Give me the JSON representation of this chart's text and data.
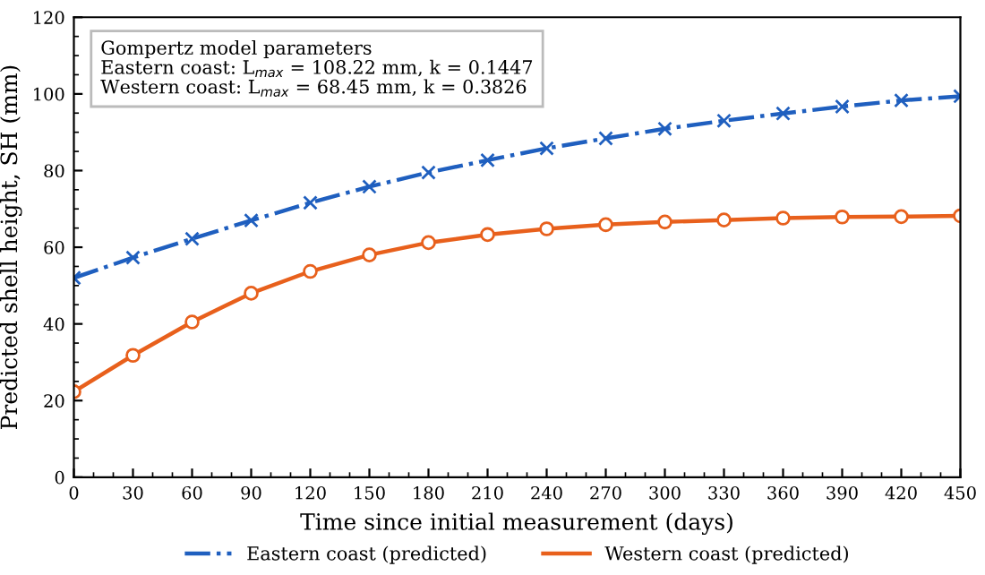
{
  "chart_data": {
    "type": "line",
    "xlabel": "Time since initial measurement (days)",
    "ylabel": "Predicted shell height, SH (mm)",
    "x": [
      0,
      30,
      60,
      90,
      120,
      150,
      180,
      210,
      240,
      270,
      300,
      330,
      360,
      390,
      420,
      450
    ],
    "series": [
      {
        "name": "Eastern coast (predicted)",
        "color": "#1f5fbf",
        "marker": "cross",
        "line_style": "dashdot",
        "values": [
          52,
          57.3,
          62.2,
          67,
          71.6,
          75.8,
          79.5,
          82.7,
          85.8,
          88.4,
          90.9,
          93.0,
          94.9,
          96.7,
          98.3,
          99.4
        ]
      },
      {
        "name": "Western coast (predicted)",
        "color": "#e8601c",
        "marker": "circle",
        "line_style": "solid",
        "values": [
          22.3,
          31.8,
          40.5,
          48,
          53.7,
          58,
          61.2,
          63.3,
          64.8,
          65.9,
          66.6,
          67.1,
          67.6,
          67.9,
          68.0,
          68.2
        ]
      }
    ],
    "annotations": [
      "Gompertz model parameters",
      "Eastern coast: L$_{max}$ = 108.22 mm, k = 0.1447",
      "Western coast: L$_{max}$ = 68.45 mm, k = 0.3826"
    ],
    "xlim": [
      0,
      450
    ],
    "xticks": [
      0,
      30,
      60,
      90,
      120,
      150,
      180,
      210,
      240,
      270,
      300,
      330,
      360,
      390,
      420,
      450
    ],
    "ylim": [
      0,
      120
    ],
    "yticks": [
      0,
      20,
      40,
      60,
      80,
      100,
      120
    ],
    "grid": false,
    "legend": "bottom"
  }
}
